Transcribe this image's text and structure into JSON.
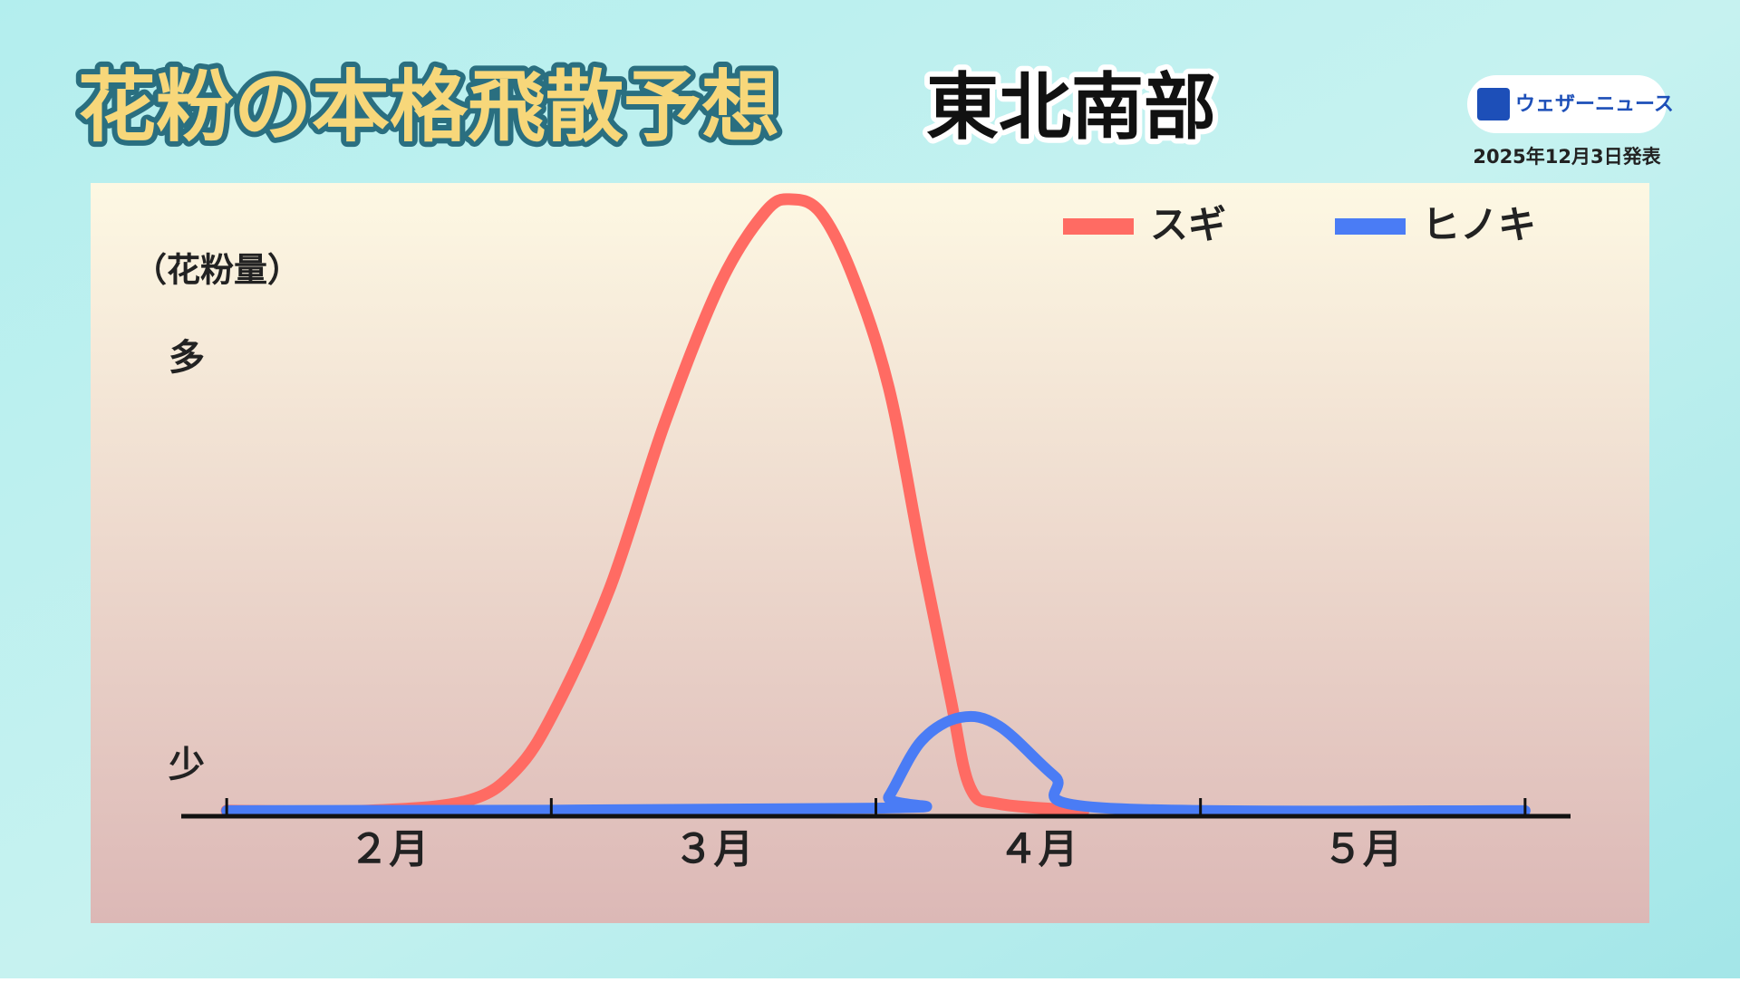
{
  "header": {
    "title": "花粉の本格飛散予想",
    "region": "東北南部",
    "brand": "ウェザーニュース",
    "date": "2025年12月3日発表"
  },
  "chart_data": {
    "type": "line",
    "y_label": "（花粉量）",
    "categories": [
      "２月",
      "３月",
      "４月",
      "５月"
    ],
    "xlim": [
      -0.14,
      4.14
    ],
    "xticks": [
      0,
      1,
      2,
      3,
      4
    ],
    "ylim": [
      0,
      100
    ],
    "yticks": [
      {
        "value": 8,
        "label": "少"
      },
      {
        "value": 74,
        "label": "多"
      }
    ],
    "legend": "top-right",
    "series": [
      {
        "name": "スギ",
        "color": "#ff6b63",
        "x": [
          0,
          0.43,
          0.74,
          0.89,
          1.01,
          1.18,
          1.35,
          1.52,
          1.66,
          1.74,
          1.83,
          1.93,
          2.04,
          2.14,
          2.23,
          2.29,
          2.38,
          2.64
        ],
        "values": [
          0.9,
          0.9,
          2.5,
          7.4,
          17.1,
          36.9,
          63.8,
          86.3,
          98,
          100,
          97.8,
          87.4,
          69.4,
          42.4,
          19.1,
          4.7,
          2,
          0.9
        ]
      },
      {
        "name": "ヒノキ",
        "color": "#4a7cf5",
        "x": [
          0,
          2.0,
          2.04,
          2.14,
          2.26,
          2.38,
          2.55,
          2.69,
          4
        ],
        "values": [
          0.9,
          1.3,
          3.2,
          12.2,
          16,
          14.6,
          6.5,
          1.4,
          0.9
        ]
      }
    ]
  }
}
